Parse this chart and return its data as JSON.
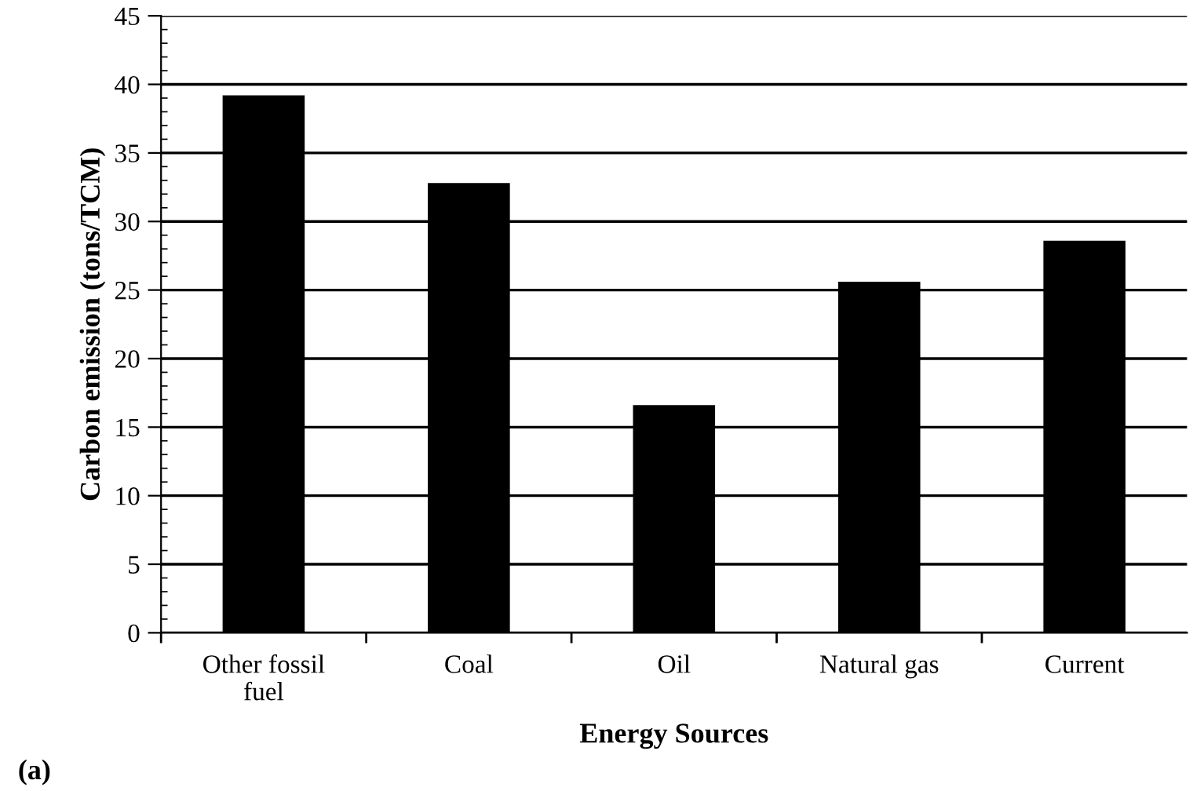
{
  "chart_data": {
    "type": "bar",
    "categories": [
      "Other fossil\nfuel",
      "Coal",
      "Oil",
      "Natural gas",
      "Current"
    ],
    "values": [
      39.2,
      32.8,
      16.6,
      25.6,
      28.6
    ],
    "color": "#000000",
    "xlabel": "Energy Sources",
    "ylabel": "Carbon emission (tons/TCM)",
    "ylim": [
      0,
      45
    ],
    "yticks": [
      0,
      5,
      10,
      15,
      20,
      25,
      30,
      35,
      40,
      45
    ],
    "grid": "y",
    "annotations": [
      "(a)"
    ]
  }
}
